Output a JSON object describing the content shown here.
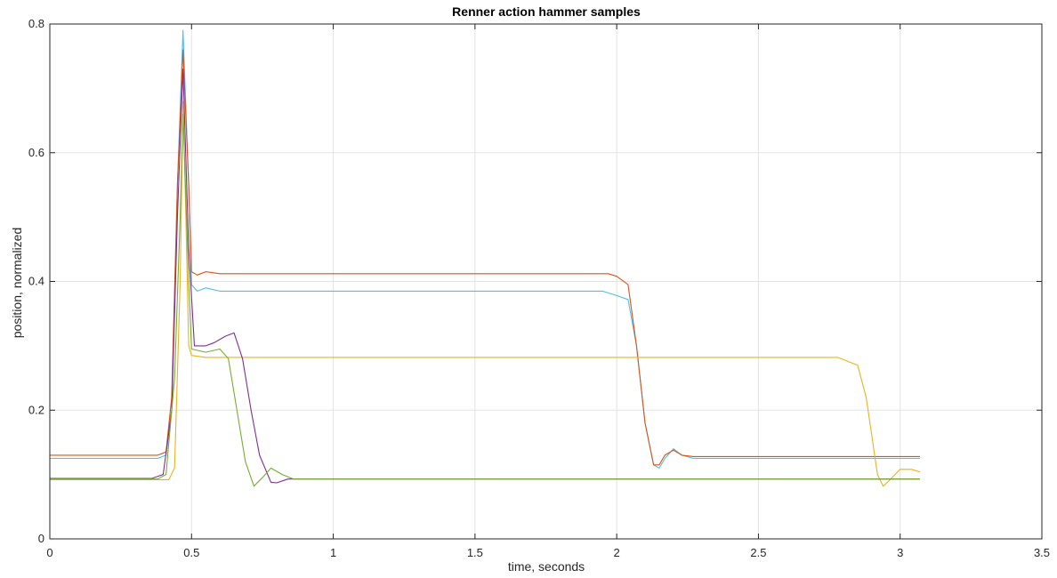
{
  "chart_data": {
    "type": "line",
    "title": "Renner action hammer samples",
    "xlabel": "time, seconds",
    "ylabel": "position, normalized",
    "xlim": [
      0,
      3.5
    ],
    "ylim": [
      0,
      0.8
    ],
    "xticks": [
      0,
      0.5,
      1,
      1.5,
      2,
      2.5,
      3,
      3.5
    ],
    "xtick_labels": [
      "0",
      "0.5",
      "1",
      "1.5",
      "2",
      "2.5",
      "3",
      "3.5"
    ],
    "yticks": [
      0,
      0.2,
      0.4,
      0.6,
      0.8
    ],
    "ytick_labels": [
      "0",
      "0.2",
      "0.4",
      "0.6",
      "0.8"
    ],
    "grid": true,
    "legend": "none",
    "series": [
      {
        "color": "#4dbeee",
        "points": [
          [
            0,
            0.125
          ],
          [
            0.38,
            0.125
          ],
          [
            0.41,
            0.13
          ],
          [
            0.43,
            0.2
          ],
          [
            0.45,
            0.55
          ],
          [
            0.47,
            0.79
          ],
          [
            0.49,
            0.55
          ],
          [
            0.5,
            0.395
          ],
          [
            0.52,
            0.385
          ],
          [
            0.55,
            0.39
          ],
          [
            0.6,
            0.385
          ],
          [
            1.0,
            0.385
          ],
          [
            1.5,
            0.385
          ],
          [
            1.95,
            0.385
          ],
          [
            2.0,
            0.378
          ],
          [
            2.04,
            0.372
          ],
          [
            2.07,
            0.3
          ],
          [
            2.1,
            0.18
          ],
          [
            2.13,
            0.115
          ],
          [
            2.15,
            0.11
          ],
          [
            2.17,
            0.125
          ],
          [
            2.2,
            0.14
          ],
          [
            2.23,
            0.13
          ],
          [
            2.27,
            0.125
          ],
          [
            3.07,
            0.125
          ]
        ]
      },
      {
        "color": "#d95319",
        "points": [
          [
            0,
            0.13
          ],
          [
            0.38,
            0.13
          ],
          [
            0.41,
            0.135
          ],
          [
            0.43,
            0.22
          ],
          [
            0.45,
            0.55
          ],
          [
            0.47,
            0.76
          ],
          [
            0.49,
            0.55
          ],
          [
            0.5,
            0.415
          ],
          [
            0.52,
            0.41
          ],
          [
            0.55,
            0.415
          ],
          [
            0.6,
            0.412
          ],
          [
            1.0,
            0.412
          ],
          [
            1.5,
            0.412
          ],
          [
            1.97,
            0.412
          ],
          [
            2.0,
            0.408
          ],
          [
            2.04,
            0.395
          ],
          [
            2.07,
            0.3
          ],
          [
            2.1,
            0.18
          ],
          [
            2.13,
            0.115
          ],
          [
            2.15,
            0.115
          ],
          [
            2.17,
            0.13
          ],
          [
            2.2,
            0.138
          ],
          [
            2.23,
            0.13
          ],
          [
            2.27,
            0.128
          ],
          [
            3.07,
            0.128
          ]
        ]
      },
      {
        "color": "#edb120",
        "points": [
          [
            0,
            0.092
          ],
          [
            0.42,
            0.092
          ],
          [
            0.44,
            0.11
          ],
          [
            0.46,
            0.4
          ],
          [
            0.47,
            0.68
          ],
          [
            0.48,
            0.5
          ],
          [
            0.49,
            0.3
          ],
          [
            0.5,
            0.285
          ],
          [
            0.55,
            0.282
          ],
          [
            1.0,
            0.282
          ],
          [
            1.5,
            0.282
          ],
          [
            2.0,
            0.282
          ],
          [
            2.5,
            0.282
          ],
          [
            2.78,
            0.282
          ],
          [
            2.82,
            0.275
          ],
          [
            2.85,
            0.27
          ],
          [
            2.88,
            0.22
          ],
          [
            2.9,
            0.16
          ],
          [
            2.92,
            0.1
          ],
          [
            2.94,
            0.082
          ],
          [
            2.96,
            0.09
          ],
          [
            3.0,
            0.108
          ],
          [
            3.04,
            0.108
          ],
          [
            3.07,
            0.104
          ]
        ]
      },
      {
        "color": "#7e2f8e",
        "points": [
          [
            0,
            0.094
          ],
          [
            0.36,
            0.094
          ],
          [
            0.4,
            0.1
          ],
          [
            0.43,
            0.2
          ],
          [
            0.45,
            0.5
          ],
          [
            0.47,
            0.73
          ],
          [
            0.49,
            0.45
          ],
          [
            0.51,
            0.3
          ],
          [
            0.55,
            0.3
          ],
          [
            0.58,
            0.305
          ],
          [
            0.62,
            0.315
          ],
          [
            0.65,
            0.32
          ],
          [
            0.68,
            0.28
          ],
          [
            0.71,
            0.2
          ],
          [
            0.74,
            0.13
          ],
          [
            0.78,
            0.088
          ],
          [
            0.8,
            0.087
          ],
          [
            0.84,
            0.093
          ],
          [
            0.9,
            0.093
          ],
          [
            3.07,
            0.093
          ]
        ]
      },
      {
        "color": "#77ac30",
        "points": [
          [
            0,
            0.093
          ],
          [
            0.38,
            0.093
          ],
          [
            0.41,
            0.1
          ],
          [
            0.44,
            0.25
          ],
          [
            0.46,
            0.5
          ],
          [
            0.47,
            0.66
          ],
          [
            0.49,
            0.4
          ],
          [
            0.5,
            0.295
          ],
          [
            0.55,
            0.29
          ],
          [
            0.6,
            0.295
          ],
          [
            0.63,
            0.28
          ],
          [
            0.66,
            0.2
          ],
          [
            0.69,
            0.12
          ],
          [
            0.72,
            0.082
          ],
          [
            0.75,
            0.095
          ],
          [
            0.78,
            0.11
          ],
          [
            0.82,
            0.1
          ],
          [
            0.86,
            0.093
          ],
          [
            3.07,
            0.093
          ]
        ]
      }
    ]
  }
}
